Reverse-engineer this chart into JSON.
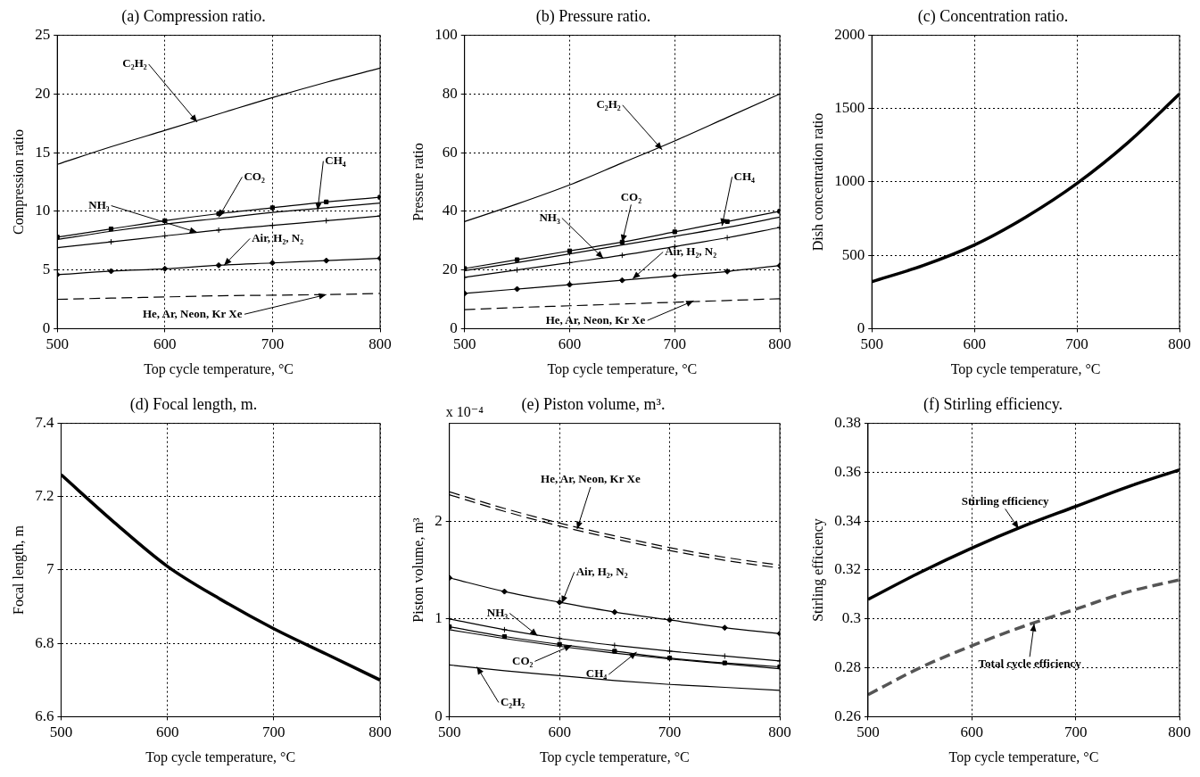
{
  "chart_data": [
    {
      "type": "line",
      "title": "(a) Compression ratio.",
      "xlabel": "Top cycle temperature, °C",
      "ylabel": "Compression ratio",
      "x": [
        500,
        550,
        600,
        650,
        700,
        750,
        800
      ],
      "xlim": [
        500,
        800
      ],
      "xticks": [
        500,
        600,
        700,
        800
      ],
      "ylim": [
        0,
        25
      ],
      "yticks": [
        0,
        5,
        10,
        15,
        20,
        25
      ],
      "grid": true,
      "series": [
        {
          "color": "#000000",
          "line_style": "solid",
          "marker": "none",
          "values": [
            14.0,
            15.5,
            16.9,
            18.3,
            19.7,
            21.0,
            22.2
          ]
        },
        {
          "color": "#000000",
          "line_style": "solid",
          "marker": "square",
          "values": [
            7.8,
            8.5,
            9.2,
            9.8,
            10.3,
            10.8,
            11.2
          ]
        },
        {
          "color": "#000000",
          "line_style": "solid",
          "marker": "none",
          "values": [
            7.6,
            8.3,
            8.9,
            9.4,
            9.9,
            10.3,
            10.7
          ]
        },
        {
          "color": "#000000",
          "line_style": "solid",
          "marker": "cross",
          "values": [
            6.9,
            7.4,
            7.9,
            8.4,
            8.8,
            9.2,
            9.6
          ]
        },
        {
          "color": "#000000",
          "line_style": "solid",
          "marker": "diamond",
          "values": [
            4.6,
            4.9,
            5.1,
            5.4,
            5.6,
            5.8,
            6.0
          ]
        },
        {
          "color": "#000000",
          "line_style": "dashed",
          "marker": "none",
          "values": [
            2.5,
            2.6,
            2.7,
            2.8,
            2.85,
            2.9,
            3.0
          ]
        }
      ],
      "annotations": [
        {
          "text": "C₂H₂",
          "x": 630,
          "y": 17.6
        },
        {
          "text": "CO₂",
          "x": 650,
          "y": 9.5
        },
        {
          "text": "CH₄",
          "x": 742,
          "y": 10.1
        },
        {
          "text": "NH₃",
          "x": 630,
          "y": 8.2
        },
        {
          "text": "Air, H₂, N₂",
          "x": 655,
          "y": 5.4
        },
        {
          "text": "He, Ar, Neon, Kr Xe",
          "x": 750,
          "y": 2.9
        }
      ]
    },
    {
      "type": "line",
      "title": "(b) Pressure ratio.",
      "xlabel": "Top cycle temperature, °C",
      "ylabel": "Pressure ratio",
      "x": [
        500,
        550,
        600,
        650,
        700,
        750,
        800
      ],
      "xlim": [
        500,
        800
      ],
      "xticks": [
        500,
        600,
        700,
        800
      ],
      "ylim": [
        0,
        100
      ],
      "yticks": [
        0,
        20,
        40,
        60,
        80,
        100
      ],
      "grid": true,
      "series": [
        {
          "color": "#000000",
          "line_style": "solid",
          "marker": "none",
          "values": [
            36.5,
            42.5,
            49,
            56.5,
            64,
            72,
            80
          ]
        },
        {
          "color": "#000000",
          "line_style": "solid",
          "marker": "square",
          "values": [
            20.5,
            23.5,
            26.5,
            29.5,
            33,
            36.5,
            40
          ]
        },
        {
          "color": "#000000",
          "line_style": "solid",
          "marker": "none",
          "values": [
            19.8,
            22.5,
            25.5,
            28.5,
            31.5,
            34.5,
            38
          ]
        },
        {
          "color": "#000000",
          "line_style": "solid",
          "marker": "cross",
          "values": [
            17.5,
            20,
            22.5,
            25,
            28,
            31,
            34.5
          ]
        },
        {
          "color": "#000000",
          "line_style": "solid",
          "marker": "diamond",
          "values": [
            12,
            13.5,
            15,
            16.5,
            18,
            19.5,
            21.5
          ]
        },
        {
          "color": "#000000",
          "line_style": "dashed",
          "marker": "none",
          "values": [
            6.5,
            7.2,
            7.8,
            8.4,
            9,
            9.6,
            10.2
          ]
        }
      ],
      "annotations": [
        {
          "text": "C₂H₂",
          "x": 688,
          "y": 61
        },
        {
          "text": "CO₂",
          "x": 650,
          "y": 29.5
        },
        {
          "text": "CH₄",
          "x": 745,
          "y": 35
        },
        {
          "text": "NH₃",
          "x": 632,
          "y": 24
        },
        {
          "text": "Air, H₂, N₂",
          "x": 660,
          "y": 17
        },
        {
          "text": "He, Ar, Neon, Kr Xe",
          "x": 718,
          "y": 9.5
        }
      ]
    },
    {
      "type": "line",
      "title": "(c) Concentration ratio.",
      "xlabel": "Top cycle temperature, °C",
      "ylabel": "Dish concentration ratio",
      "x": [
        500,
        550,
        600,
        650,
        700,
        750,
        800
      ],
      "xlim": [
        500,
        800
      ],
      "xticks": [
        500,
        600,
        700,
        800
      ],
      "ylim": [
        0,
        2000
      ],
      "yticks": [
        0,
        500,
        1000,
        1500,
        2000
      ],
      "grid": true,
      "series": [
        {
          "color": "#000000",
          "line_style": "solid",
          "marker": "none",
          "values": [
            320,
            430,
            570,
            760,
            990,
            1270,
            1600
          ]
        }
      ]
    },
    {
      "type": "line",
      "title": "(d) Focal length, m.",
      "xlabel": "Top cycle temperature, °C",
      "ylabel": "Focal length, m",
      "x": [
        500,
        550,
        600,
        650,
        700,
        750,
        800
      ],
      "xlim": [
        500,
        800
      ],
      "xticks": [
        500,
        600,
        700,
        800
      ],
      "ylim": [
        6.6,
        7.4
      ],
      "yticks": [
        6.6,
        6.8,
        7,
        7.2,
        7.4
      ],
      "grid": true,
      "series": [
        {
          "color": "#000000",
          "line_style": "solid",
          "marker": "none",
          "values": [
            7.26,
            7.13,
            7.01,
            6.92,
            6.84,
            6.77,
            6.7
          ]
        }
      ]
    },
    {
      "type": "line",
      "title": "(e) Piston volume, m³.",
      "xlabel": "Top cycle temperature, °C",
      "ylabel": "Piston volume, m³",
      "x": [
        500,
        550,
        600,
        650,
        700,
        750,
        800
      ],
      "xlim": [
        500,
        800
      ],
      "xticks": [
        500,
        600,
        700,
        800
      ],
      "ylim": [
        0,
        3
      ],
      "yticks": [
        0,
        1,
        2
      ],
      "grid": true,
      "series": [
        {
          "color": "#000000",
          "line_style": "dashed",
          "marker": "none",
          "values": [
            2.3,
            2.13,
            1.98,
            1.85,
            1.73,
            1.63,
            1.55
          ]
        },
        {
          "color": "#000000",
          "line_style": "dashed",
          "marker": "none",
          "values": [
            2.27,
            2.1,
            1.95,
            1.82,
            1.7,
            1.6,
            1.52
          ]
        },
        {
          "color": "#000000",
          "line_style": "solid",
          "marker": "diamond",
          "values": [
            1.42,
            1.28,
            1.17,
            1.07,
            0.99,
            0.91,
            0.85
          ]
        },
        {
          "color": "#000000",
          "line_style": "solid",
          "marker": "cross",
          "values": [
            1.0,
            0.89,
            0.8,
            0.73,
            0.67,
            0.62,
            0.57
          ]
        },
        {
          "color": "#000000",
          "line_style": "solid",
          "marker": "square",
          "values": [
            0.92,
            0.82,
            0.74,
            0.67,
            0.6,
            0.55,
            0.51
          ]
        },
        {
          "color": "#000000",
          "line_style": "solid",
          "marker": "none",
          "values": [
            0.89,
            0.8,
            0.72,
            0.65,
            0.59,
            0.54,
            0.49
          ]
        },
        {
          "color": "#000000",
          "line_style": "solid",
          "marker": "none",
          "values": [
            0.53,
            0.47,
            0.42,
            0.37,
            0.33,
            0.3,
            0.27
          ]
        }
      ],
      "annotations": [
        "x 10⁻⁴",
        {
          "text": "He, Ar, Neon, Kr Xe",
          "x": 616,
          "y": 1.92
        },
        {
          "text": "Air, H₂, N₂",
          "x": 602,
          "y": 1.16
        },
        {
          "text": "NH₃",
          "x": 580,
          "y": 0.83
        },
        {
          "text": "CO₂",
          "x": 611,
          "y": 0.73
        },
        {
          "text": "CH₄",
          "x": 670,
          "y": 0.66
        },
        {
          "text": "C₂H₂",
          "x": 525,
          "y": 0.51
        }
      ]
    },
    {
      "type": "line",
      "title": "(f) Stirling efficiency.",
      "xlabel": "Top cycle temperature, °C",
      "ylabel": "Stirling efficiency",
      "x": [
        500,
        550,
        600,
        650,
        700,
        750,
        800
      ],
      "xlim": [
        500,
        800
      ],
      "xticks": [
        500,
        600,
        700,
        800
      ],
      "ylim": [
        0.26,
        0.38
      ],
      "yticks": [
        0.26,
        0.28,
        0.3,
        0.32,
        0.34,
        0.36,
        0.38
      ],
      "grid": true,
      "series": [
        {
          "color": "#000000",
          "line_style": "solid",
          "marker": "none",
          "values": [
            0.308,
            0.319,
            0.329,
            0.338,
            0.346,
            0.354,
            0.361
          ]
        },
        {
          "color": "#555555",
          "line_style": "dashed",
          "marker": "none",
          "values": [
            0.269,
            0.28,
            0.289,
            0.297,
            0.304,
            0.311,
            0.316
          ]
        }
      ],
      "annotations": [
        {
          "text": "Stirling efficiency",
          "x": 645,
          "y": 0.337
        },
        {
          "text": "Total cycle efficiency",
          "x": 660,
          "y": 0.298
        }
      ]
    }
  ]
}
